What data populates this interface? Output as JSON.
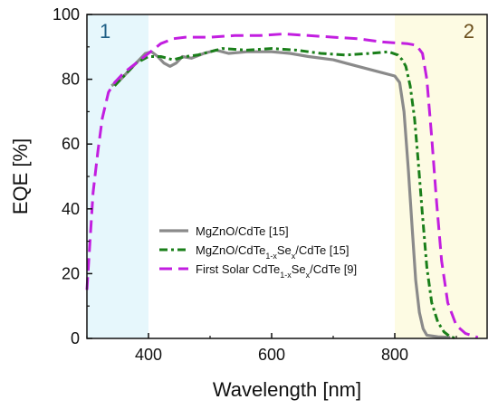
{
  "chart_data": {
    "type": "line",
    "xlabel": "Wavelength [nm]",
    "ylabel": "EQE [%]",
    "xlim": [
      300,
      950
    ],
    "ylim": [
      0,
      100
    ],
    "xticks": [
      400,
      600,
      800
    ],
    "yticks": [
      0,
      20,
      40,
      60,
      80,
      100
    ],
    "grid": false,
    "legend": "center-bottom",
    "regions": [
      {
        "label": "1",
        "x0": 300,
        "x1": 400,
        "color": "#e6f7fc",
        "label_color": "#1f5f86"
      },
      {
        "label": "2",
        "x0": 800,
        "x1": 950,
        "color": "#fdfbe3",
        "label_color": "#6b4f1d"
      }
    ],
    "series": [
      {
        "name": "MgZnO/CdTe [15]",
        "legend_parts": [
          {
            "t": "MgZnO/CdTe [15]",
            "sub": false
          }
        ],
        "color": "#8a8a8a",
        "dash": "solid",
        "points": [
          [
            340,
            78
          ],
          [
            355,
            80
          ],
          [
            370,
            83
          ],
          [
            385,
            86
          ],
          [
            395,
            88
          ],
          [
            405,
            88.5
          ],
          [
            415,
            87
          ],
          [
            425,
            85
          ],
          [
            435,
            84
          ],
          [
            445,
            85
          ],
          [
            455,
            87
          ],
          [
            470,
            86.5
          ],
          [
            490,
            88
          ],
          [
            510,
            89
          ],
          [
            530,
            88
          ],
          [
            560,
            88.5
          ],
          [
            600,
            88.5
          ],
          [
            630,
            88
          ],
          [
            660,
            87
          ],
          [
            700,
            86
          ],
          [
            740,
            84
          ],
          [
            780,
            82
          ],
          [
            800,
            81
          ],
          [
            808,
            79
          ],
          [
            815,
            70
          ],
          [
            822,
            52
          ],
          [
            828,
            35
          ],
          [
            834,
            18
          ],
          [
            840,
            8
          ],
          [
            846,
            3
          ],
          [
            852,
            1
          ],
          [
            870,
            0.5
          ],
          [
            890,
            0.3
          ]
        ]
      },
      {
        "name": "MgZnO/CdTe1-xSex/CdTe [15]",
        "legend_parts": [
          {
            "t": "MgZnO/CdTe",
            "sub": false
          },
          {
            "t": "1-x",
            "sub": true
          },
          {
            "t": "Se",
            "sub": false
          },
          {
            "t": "x",
            "sub": true
          },
          {
            "t": "/CdTe [15]",
            "sub": false
          }
        ],
        "color": "#1a7f1a",
        "dash": "dashdot",
        "points": [
          [
            345,
            78
          ],
          [
            360,
            81
          ],
          [
            380,
            85
          ],
          [
            400,
            87
          ],
          [
            420,
            87
          ],
          [
            440,
            86
          ],
          [
            460,
            87
          ],
          [
            480,
            87.5
          ],
          [
            500,
            88.5
          ],
          [
            520,
            89.5
          ],
          [
            560,
            89
          ],
          [
            600,
            89.5
          ],
          [
            640,
            89
          ],
          [
            680,
            88
          ],
          [
            720,
            87.5
          ],
          [
            760,
            88
          ],
          [
            790,
            88.5
          ],
          [
            805,
            87.5
          ],
          [
            812,
            86
          ],
          [
            818,
            84
          ],
          [
            825,
            78
          ],
          [
            832,
            68
          ],
          [
            838,
            55
          ],
          [
            845,
            38
          ],
          [
            852,
            22
          ],
          [
            860,
            11
          ],
          [
            870,
            5
          ],
          [
            880,
            2
          ],
          [
            890,
            0.5
          ],
          [
            900,
            0
          ]
        ]
      },
      {
        "name": "First Solar CdTe1-xSex/CdTe [9]",
        "legend_parts": [
          {
            "t": "First Solar CdTe",
            "sub": false
          },
          {
            "t": "1-x",
            "sub": true
          },
          {
            "t": "Se",
            "sub": false
          },
          {
            "t": "x",
            "sub": true
          },
          {
            "t": "/CdTe [9]",
            "sub": false
          }
        ],
        "color": "#c21ee0",
        "dash": "dash",
        "points": [
          [
            300,
            15
          ],
          [
            305,
            30
          ],
          [
            310,
            45
          ],
          [
            318,
            58
          ],
          [
            325,
            68
          ],
          [
            335,
            76
          ],
          [
            345,
            79
          ],
          [
            360,
            82
          ],
          [
            380,
            85
          ],
          [
            400,
            88
          ],
          [
            420,
            91
          ],
          [
            440,
            92.5
          ],
          [
            460,
            93
          ],
          [
            500,
            93
          ],
          [
            540,
            93.5
          ],
          [
            580,
            93.5
          ],
          [
            620,
            94
          ],
          [
            660,
            93.5
          ],
          [
            700,
            93
          ],
          [
            740,
            92.5
          ],
          [
            780,
            91.5
          ],
          [
            820,
            91
          ],
          [
            835,
            90.5
          ],
          [
            845,
            88
          ],
          [
            852,
            80
          ],
          [
            860,
            62
          ],
          [
            868,
            42
          ],
          [
            876,
            24
          ],
          [
            886,
            11
          ],
          [
            900,
            4
          ],
          [
            915,
            1.5
          ],
          [
            935,
            0.3
          ]
        ]
      }
    ]
  }
}
